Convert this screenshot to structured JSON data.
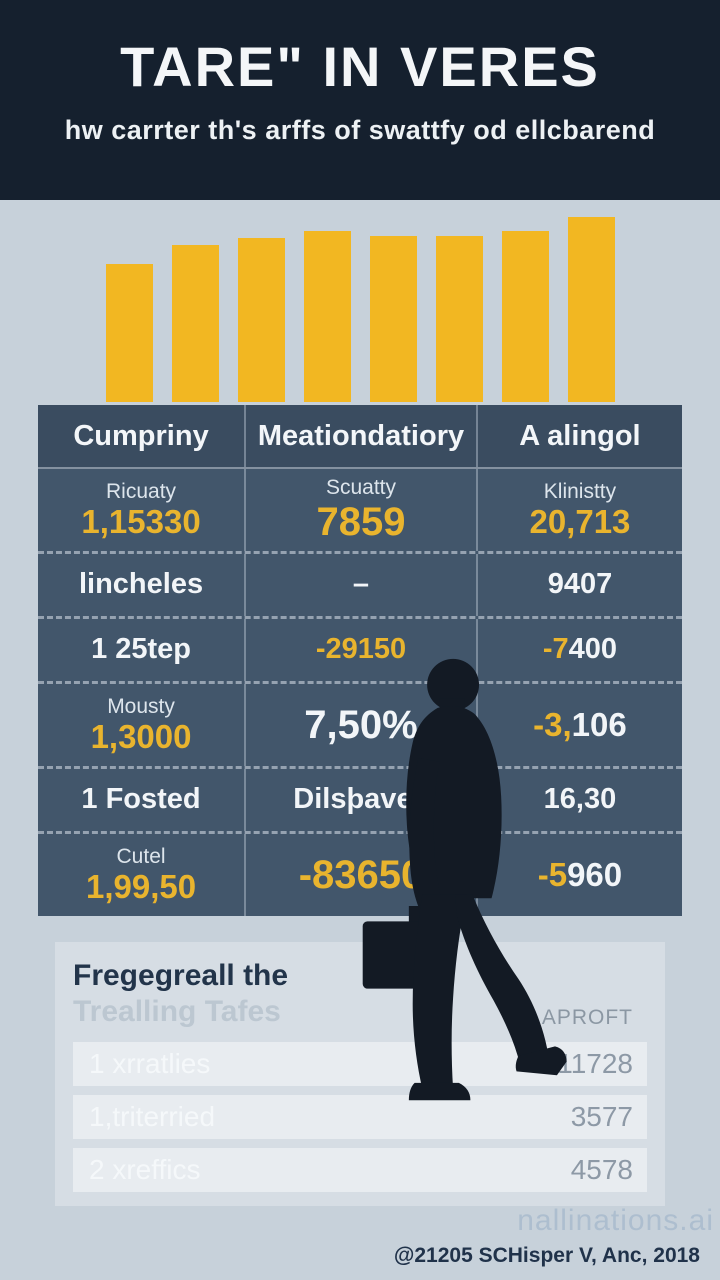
{
  "colors": {
    "accent": "#e9b42e",
    "bar": "#f2b722",
    "header_bg": "#15202e",
    "table_bg": "#42566b",
    "table_header_bg": "#3a4c60",
    "page_bg": "#c7d1da",
    "panel_bg": "#d6dde4"
  },
  "header": {
    "title": "TARE\" IN VERES",
    "subtitle": "hw carrter th's arffs of swattfy od ellcbarend"
  },
  "chart_data": {
    "type": "bar",
    "categories": [
      "",
      "",
      "",
      "",
      "",
      "",
      "",
      ""
    ],
    "values": [
      58,
      66,
      69,
      72,
      70,
      70,
      72,
      78
    ],
    "title": "",
    "xlabel": "",
    "ylabel": "",
    "ylim": [
      0,
      80
    ],
    "grid": false,
    "legend": false,
    "bar_color": "#f2b722"
  },
  "table": {
    "headers": [
      "Cumpriny",
      "Meationdatiory",
      "A alingol"
    ],
    "rows": [
      {
        "cells": [
          {
            "label": "Ricuaty",
            "value": "1,15330"
          },
          {
            "label": "Scuatty",
            "value": "7859"
          },
          {
            "label": "Klinistty",
            "value": "20,713"
          }
        ]
      },
      {
        "cells": [
          {
            "value": "lincheles"
          },
          {
            "value": "–"
          },
          {
            "value": "9407"
          }
        ]
      },
      {
        "cells": [
          {
            "value": "1 25tep"
          },
          {
            "value": "-29150"
          },
          {
            "value": "-7",
            "value2": "400"
          }
        ]
      },
      {
        "cells": [
          {
            "label": "Mousty",
            "value": "1,3000"
          },
          {
            "value": "7,50%"
          },
          {
            "value": "-3,",
            "value2": "106"
          }
        ]
      },
      {
        "cells": [
          {
            "value": "1 Fosted"
          },
          {
            "value": "Dilsþaves"
          },
          {
            "value": "16,30"
          }
        ]
      },
      {
        "cells": [
          {
            "label": "Cutel",
            "value": "1,99,50"
          },
          {
            "value": "-83650"
          },
          {
            "value": "-5",
            "value2": "960"
          }
        ]
      }
    ]
  },
  "summary": {
    "title_line1": "Fregegreall the",
    "title_line2": "Trealling Tafes",
    "column_header": "APROFT",
    "rows": [
      {
        "label": "1 xrratlies",
        "value": "11728"
      },
      {
        "label": "1,triterried",
        "value": "3577"
      },
      {
        "label": "2 xreffics",
        "value": "4578"
      }
    ]
  },
  "illustration": {
    "name": "walking-businessman-silhouette"
  },
  "footer": {
    "watermark": "nallinations.ai",
    "credit": "@21205 SCHisper V, Anc, 2018"
  }
}
